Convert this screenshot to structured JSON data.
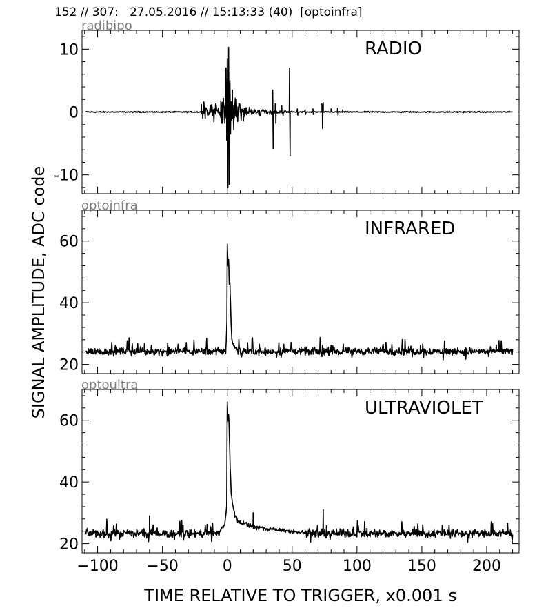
{
  "header": "152 // 307:   27.05.2016 // 15:13:33 (40)  [optoinfra]",
  "figure": {
    "ylabel": "SIGNAL AMPLITUDE,  ADC code",
    "xlabel": "TIME RELATIVE TO TRIGGER,   x0.001 s"
  },
  "chart_data": [
    {
      "type": "line",
      "channel": "radibipo",
      "title": "RADIO",
      "xlim": [
        -112,
        225
      ],
      "ylim": [
        -13,
        13
      ],
      "xticks": [
        -100,
        -50,
        0,
        50,
        100,
        150,
        200
      ],
      "yticks": [
        -10,
        0,
        10
      ],
      "ytick_labels": [
        "-10",
        "0",
        "10"
      ],
      "series": [
        {
          "color": "#000000",
          "baseline": 0,
          "noise": 0.08,
          "bursts": [
            {
              "x": 0,
              "width": 22,
              "amp": 2.2
            },
            {
              "x": 25,
              "width": 28,
              "amp": 0.5
            }
          ],
          "spikes": [
            {
              "x": -20,
              "y": 1.2
            },
            {
              "x": -19,
              "y": -1.0
            },
            {
              "x": -18,
              "y": 1.6
            },
            {
              "x": -17,
              "y": -1.0
            },
            {
              "x": -9,
              "y": 1.3
            },
            {
              "x": -5,
              "y": 1.8
            },
            {
              "x": -4,
              "y": -1.8
            },
            {
              "x": -3,
              "y": 2.2
            },
            {
              "x": -1,
              "y": 7.0
            },
            {
              "x": -0.5,
              "y": -4.5
            },
            {
              "x": 0,
              "y": 8.5
            },
            {
              "x": 0.5,
              "y": -12.0
            },
            {
              "x": 1,
              "y": 10.3
            },
            {
              "x": 1.5,
              "y": -11.5
            },
            {
              "x": 2,
              "y": 5.0
            },
            {
              "x": 2.5,
              "y": -3.5
            },
            {
              "x": 4,
              "y": 3.5
            },
            {
              "x": 5,
              "y": -2.8
            },
            {
              "x": 7,
              "y": 2.0
            },
            {
              "x": 8,
              "y": -1.5
            },
            {
              "x": 35,
              "y": 3.5
            },
            {
              "x": 35.4,
              "y": -5.8
            },
            {
              "x": 37,
              "y": 1.3
            },
            {
              "x": 37.4,
              "y": -1.8
            },
            {
              "x": 42,
              "y": 1.0
            },
            {
              "x": 43,
              "y": -0.6
            },
            {
              "x": 48,
              "y": 7.0
            },
            {
              "x": 48.4,
              "y": -7.0
            },
            {
              "x": 54,
              "y": 0.5
            },
            {
              "x": 54.4,
              "y": -0.5
            },
            {
              "x": 60,
              "y": 0.4
            },
            {
              "x": 60.4,
              "y": -0.4
            },
            {
              "x": 66,
              "y": 0.5
            },
            {
              "x": 66.4,
              "y": -0.4
            },
            {
              "x": 73,
              "y": 1.3
            },
            {
              "x": 73.4,
              "y": -2.6
            },
            {
              "x": 74,
              "y": 1.5
            },
            {
              "x": 80,
              "y": 0.5
            },
            {
              "x": 85,
              "y": 0.6
            },
            {
              "x": 85.4,
              "y": -0.5
            },
            {
              "x": 89,
              "y": 0.4
            }
          ]
        }
      ]
    },
    {
      "type": "line",
      "channel": "optoinfra",
      "title": "INFRARED",
      "xlim": [
        -112,
        225
      ],
      "ylim": [
        17,
        70
      ],
      "xticks": [
        -100,
        -50,
        0,
        50,
        100,
        150,
        200
      ],
      "yticks": [
        20,
        40,
        60
      ],
      "ytick_labels": [
        "20",
        "40",
        "60"
      ],
      "series": [
        {
          "color": "#000000",
          "baseline": 24.2,
          "noise": 1.0,
          "spike_rate": 0.05,
          "spike_amp": 3.0,
          "pulse": [
            [
              -1,
              26
            ],
            [
              -0.3,
              34
            ],
            [
              0,
              59
            ],
            [
              0.6,
              52
            ],
            [
              1,
              54
            ],
            [
              1.5,
              46
            ],
            [
              2,
              46.5
            ],
            [
              2.5,
              40
            ],
            [
              3,
              33
            ],
            [
              3.5,
              28
            ],
            [
              4.5,
              26.5
            ],
            [
              6,
              25.5
            ],
            [
              8,
              24.8
            ]
          ]
        }
      ]
    },
    {
      "type": "line",
      "channel": "optoultra",
      "title": "ULTRAVIOLET",
      "xlim": [
        -112,
        225
      ],
      "ylim": [
        17,
        70
      ],
      "xticks": [
        -100,
        -50,
        0,
        50,
        100,
        150,
        200
      ],
      "yticks": [
        20,
        40,
        60
      ],
      "ytick_labels": [
        "20",
        "40",
        "60"
      ],
      "series": [
        {
          "color": "#000000",
          "baseline": 23.3,
          "noise": 1.1,
          "spike_rate": 0.05,
          "spike_amp": 3.2,
          "pulse": [
            [
              -6,
              24
            ],
            [
              -2,
              26
            ],
            [
              -0.5,
              32
            ],
            [
              0,
              66
            ],
            [
              0.5,
              60
            ],
            [
              1,
              62
            ],
            [
              1.5,
              57
            ],
            [
              2.2,
              45
            ],
            [
              3,
              36
            ],
            [
              4.5,
              32
            ],
            [
              6,
              29
            ],
            [
              8,
              27.5
            ],
            [
              12,
              26.5
            ],
            [
              20,
              25.5
            ],
            [
              30,
              24.8
            ],
            [
              45,
              24.2
            ],
            [
              60,
              23.6
            ]
          ],
          "spikes": [
            {
              "x": 74,
              "y": 31
            },
            {
              "x": 20,
              "y": 30
            },
            {
              "x": -60,
              "y": 29
            }
          ]
        }
      ]
    }
  ]
}
